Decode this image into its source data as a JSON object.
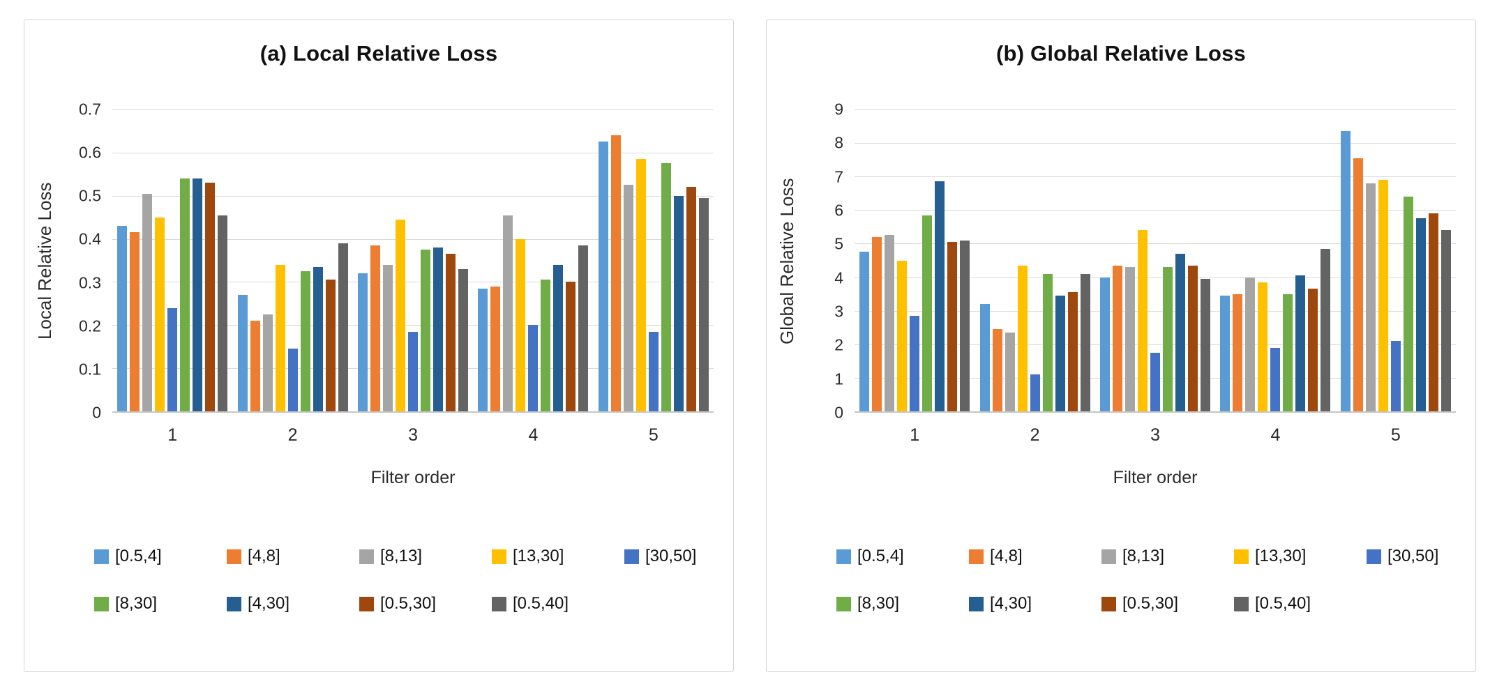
{
  "chart_data": [
    {
      "type": "bar",
      "title": "(a) Local Relative Loss",
      "xlabel": "Filter order",
      "ylabel": "Local Relative Loss",
      "categories": [
        "1",
        "2",
        "3",
        "4",
        "5"
      ],
      "ylim": [
        0,
        0.7
      ],
      "yticks": [
        "0",
        "0.1",
        "0.2",
        "0.3",
        "0.4",
        "0.5",
        "0.6",
        "0.7"
      ],
      "grid": true,
      "legend_position": "bottom",
      "legend_rows": [
        5,
        4
      ],
      "series": [
        {
          "name": "[0.5,4]",
          "color": "#5B9BD5",
          "values": [
            0.43,
            0.27,
            0.32,
            0.285,
            0.625
          ]
        },
        {
          "name": "[4,8]",
          "color": "#ED7D31",
          "values": [
            0.415,
            0.21,
            0.385,
            0.29,
            0.64
          ]
        },
        {
          "name": "[8,13]",
          "color": "#A5A5A5",
          "values": [
            0.505,
            0.225,
            0.34,
            0.455,
            0.525
          ]
        },
        {
          "name": "[13,30]",
          "color": "#FFC000",
          "values": [
            0.45,
            0.34,
            0.445,
            0.4,
            0.585
          ]
        },
        {
          "name": "[30,50]",
          "color": "#4472C4",
          "values": [
            0.24,
            0.145,
            0.185,
            0.2,
            0.185
          ]
        },
        {
          "name": "[8,30]",
          "color": "#70AD47",
          "values": [
            0.54,
            0.325,
            0.375,
            0.305,
            0.575
          ]
        },
        {
          "name": "[4,30]",
          "color": "#255E91",
          "values": [
            0.54,
            0.335,
            0.38,
            0.34,
            0.5
          ]
        },
        {
          "name": "[0.5,30]",
          "color": "#9E480E",
          "values": [
            0.53,
            0.305,
            0.365,
            0.3,
            0.52
          ]
        },
        {
          "name": "[0.5,40]",
          "color": "#636363",
          "values": [
            0.455,
            0.39,
            0.33,
            0.385,
            0.495
          ]
        }
      ]
    },
    {
      "type": "bar",
      "title": "(b) Global Relative Loss",
      "xlabel": "Filter order",
      "ylabel": "Global Relative Loss",
      "categories": [
        "1",
        "2",
        "3",
        "4",
        "5"
      ],
      "ylim": [
        0,
        9
      ],
      "yticks": [
        "0",
        "1",
        "2",
        "3",
        "4",
        "5",
        "6",
        "7",
        "8",
        "9"
      ],
      "grid": true,
      "legend_position": "bottom",
      "legend_rows": [
        5,
        4
      ],
      "series": [
        {
          "name": "[0.5,4]",
          "color": "#5B9BD5",
          "values": [
            4.75,
            3.2,
            4.0,
            3.45,
            8.35
          ]
        },
        {
          "name": "[4,8]",
          "color": "#ED7D31",
          "values": [
            5.2,
            2.45,
            4.35,
            3.5,
            7.55
          ]
        },
        {
          "name": "[8,13]",
          "color": "#A5A5A5",
          "values": [
            5.25,
            2.35,
            4.3,
            4.0,
            6.8
          ]
        },
        {
          "name": "[13,30]",
          "color": "#FFC000",
          "values": [
            4.5,
            4.35,
            5.4,
            3.85,
            6.9
          ]
        },
        {
          "name": "[30,50]",
          "color": "#4472C4",
          "values": [
            2.85,
            1.1,
            1.75,
            1.9,
            2.1
          ]
        },
        {
          "name": "[8,30]",
          "color": "#70AD47",
          "values": [
            5.85,
            4.1,
            4.3,
            3.5,
            6.4
          ]
        },
        {
          "name": "[4,30]",
          "color": "#255E91",
          "values": [
            6.85,
            3.45,
            4.7,
            4.05,
            5.75
          ]
        },
        {
          "name": "[0.5,30]",
          "color": "#9E480E",
          "values": [
            5.05,
            3.55,
            4.35,
            3.65,
            5.9
          ]
        },
        {
          "name": "[0.5,40]",
          "color": "#636363",
          "values": [
            5.1,
            4.1,
            3.95,
            4.85,
            5.4
          ]
        }
      ]
    }
  ]
}
